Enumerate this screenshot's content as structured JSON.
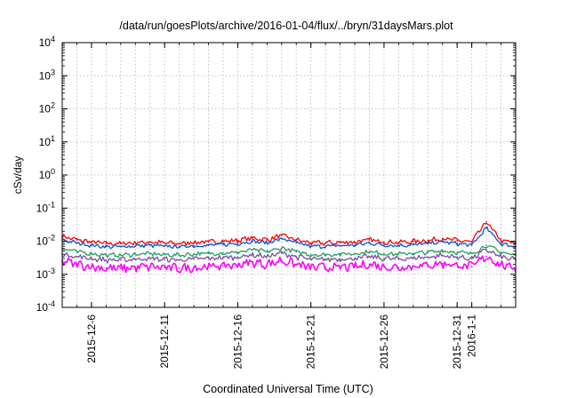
{
  "chart_data": {
    "type": "line",
    "title": "/data/run/goesPlots/archive/2016-01-04/flux/../bryn/31daysMars.plot",
    "xlabel": "Coordinated Universal Time (UTC)",
    "ylabel": "cSv/day",
    "y_scale": "log",
    "ylim": [
      0.0001,
      10000
    ],
    "xlim": [
      "2015-12-04",
      "2016-01-04"
    ],
    "grid": true,
    "y_ticks": [
      {
        "value": 0.0001,
        "base": "10",
        "exp": "-4"
      },
      {
        "value": 0.001,
        "base": "10",
        "exp": "-3"
      },
      {
        "value": 0.01,
        "base": "10",
        "exp": "-2"
      },
      {
        "value": 0.1,
        "base": "10",
        "exp": "-1"
      },
      {
        "value": 1,
        "base": "10",
        "exp": "0"
      },
      {
        "value": 10,
        "base": "10",
        "exp": "1"
      },
      {
        "value": 100,
        "base": "10",
        "exp": "2"
      },
      {
        "value": 1000,
        "base": "10",
        "exp": "3"
      },
      {
        "value": 10000,
        "base": "10",
        "exp": "4"
      }
    ],
    "x_ticks": [
      {
        "date": "2015-12-06",
        "label": "2015-12-6"
      },
      {
        "date": "2015-12-11",
        "label": "2015-12-11"
      },
      {
        "date": "2015-12-16",
        "label": "2015-12-16"
      },
      {
        "date": "2015-12-21",
        "label": "2015-12-21"
      },
      {
        "date": "2015-12-26",
        "label": "2015-12-26"
      },
      {
        "date": "2015-12-31",
        "label": "2015-12-31"
      },
      {
        "date": "2016-01-01",
        "label": "2016-1-1"
      }
    ],
    "x": [
      "2015-12-04",
      "2015-12-05",
      "2015-12-06",
      "2015-12-07",
      "2015-12-08",
      "2015-12-09",
      "2015-12-10",
      "2015-12-11",
      "2015-12-12",
      "2015-12-13",
      "2015-12-14",
      "2015-12-15",
      "2015-12-16",
      "2015-12-17",
      "2015-12-18",
      "2015-12-19",
      "2015-12-20",
      "2015-12-21",
      "2015-12-22",
      "2015-12-23",
      "2015-12-24",
      "2015-12-25",
      "2015-12-26",
      "2015-12-27",
      "2015-12-28",
      "2015-12-29",
      "2015-12-30",
      "2015-12-31",
      "2016-01-01",
      "2016-01-02",
      "2016-01-03",
      "2016-01-04"
    ],
    "series": [
      {
        "color": "#ff0000",
        "values": [
          0.014,
          0.011,
          0.0095,
          0.0085,
          0.0085,
          0.009,
          0.0095,
          0.0088,
          0.0085,
          0.0092,
          0.0095,
          0.01,
          0.0105,
          0.0125,
          0.011,
          0.015,
          0.011,
          0.0088,
          0.0088,
          0.0092,
          0.0095,
          0.011,
          0.0095,
          0.0092,
          0.0098,
          0.0105,
          0.012,
          0.0105,
          0.0095,
          0.038,
          0.0105,
          0.0085
        ]
      },
      {
        "color": "#0055dd",
        "values": [
          0.011,
          0.0088,
          0.0075,
          0.0068,
          0.0068,
          0.0072,
          0.0075,
          0.007,
          0.0068,
          0.0073,
          0.0075,
          0.008,
          0.0084,
          0.01,
          0.0088,
          0.012,
          0.0088,
          0.007,
          0.007,
          0.0073,
          0.0076,
          0.0088,
          0.0076,
          0.0074,
          0.0078,
          0.0084,
          0.0096,
          0.0084,
          0.0076,
          0.025,
          0.0084,
          0.0068
        ]
      },
      {
        "color": "#1f9f60",
        "values": [
          0.006,
          0.0048,
          0.0042,
          0.0038,
          0.0038,
          0.004,
          0.0042,
          0.0039,
          0.0038,
          0.0041,
          0.0042,
          0.0044,
          0.0046,
          0.0055,
          0.0048,
          0.0062,
          0.0048,
          0.0039,
          0.0039,
          0.0041,
          0.0042,
          0.0048,
          0.0042,
          0.0041,
          0.0043,
          0.0046,
          0.0052,
          0.0046,
          0.0042,
          0.0075,
          0.0046,
          0.0038
        ]
      },
      {
        "color": "#7a4fa0",
        "values": [
          0.0042,
          0.0034,
          0.003,
          0.0027,
          0.0027,
          0.0029,
          0.003,
          0.0028,
          0.0027,
          0.0029,
          0.003,
          0.0032,
          0.0033,
          0.0039,
          0.0034,
          0.0044,
          0.0034,
          0.0028,
          0.0028,
          0.0029,
          0.003,
          0.0034,
          0.003,
          0.0029,
          0.0031,
          0.0033,
          0.0037,
          0.0033,
          0.003,
          0.0055,
          0.0033,
          0.0027
        ]
      },
      {
        "color": "#ff00ff",
        "values": [
          0.0025,
          0.002,
          0.0017,
          0.0015,
          0.0015,
          0.0016,
          0.0017,
          0.0016,
          0.0015,
          0.0016,
          0.0017,
          0.0018,
          0.0019,
          0.0023,
          0.002,
          0.0026,
          0.002,
          0.0016,
          0.0016,
          0.0016,
          0.0017,
          0.002,
          0.0017,
          0.0016,
          0.0018,
          0.0019,
          0.0021,
          0.0019,
          0.0017,
          0.0035,
          0.0019,
          0.0015
        ]
      }
    ]
  }
}
